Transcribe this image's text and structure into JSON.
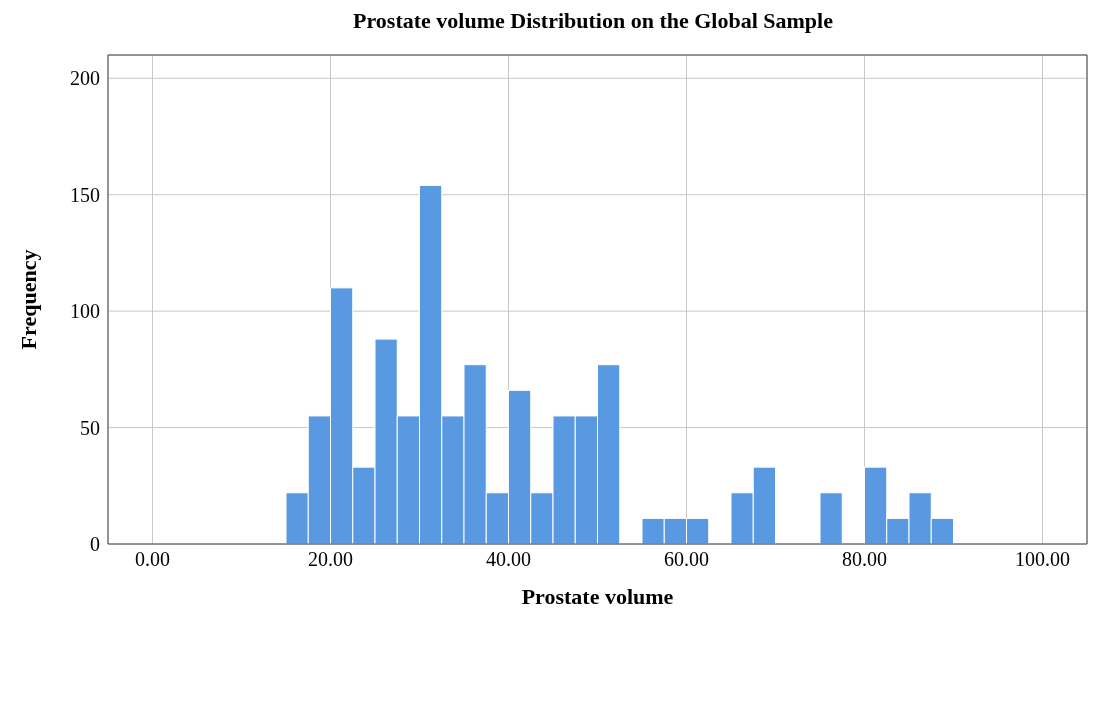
{
  "chart_data": {
    "type": "histogram",
    "title": "Prostate volume Distribution on the Global Sample",
    "xlabel": "Prostate volume",
    "ylabel": "Frequency",
    "bins": [
      15,
      17.5,
      20,
      22.5,
      25,
      27.5,
      30,
      32.5,
      35,
      37.5,
      40,
      42.5,
      45,
      47.5,
      50,
      52.5,
      55,
      57.5,
      60,
      62.5,
      65,
      67.5,
      70,
      72.5,
      75,
      77.5,
      80,
      82.5,
      85,
      87.5,
      90
    ],
    "values": [
      22,
      55,
      110,
      33,
      88,
      55,
      154,
      55,
      77,
      22,
      66,
      22,
      55,
      55,
      77,
      0,
      11,
      11,
      11,
      0,
      22,
      33,
      0,
      0,
      22,
      0,
      33,
      11,
      22,
      11
    ],
    "color": "#5899e2",
    "xlim": [
      -5,
      105
    ],
    "xticks": [
      {
        "value": 0,
        "label": "0.00"
      },
      {
        "value": 20,
        "label": "20.00"
      },
      {
        "value": 40,
        "label": "40.00"
      },
      {
        "value": 60,
        "label": "60.00"
      },
      {
        "value": 80,
        "label": "80.00"
      },
      {
        "value": 100,
        "label": "100.00"
      }
    ],
    "ylim": [
      0,
      210
    ],
    "yticks": [
      0,
      50,
      100,
      150,
      200
    ],
    "grid": true
  }
}
